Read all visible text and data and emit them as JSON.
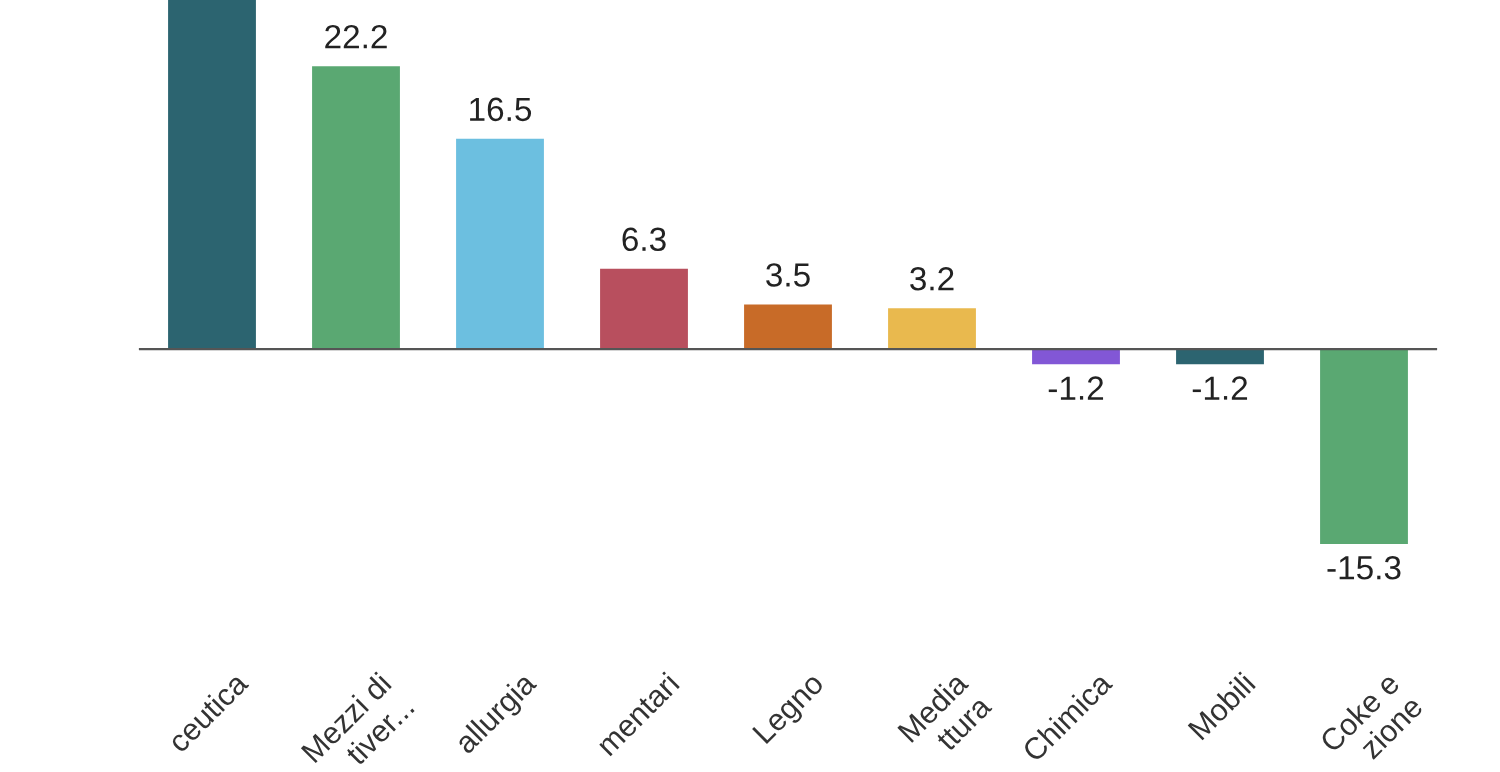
{
  "chart_data": {
    "type": "bar",
    "categories": [
      "ceutica",
      "Mezzi di\ntiver...",
      "allurgia",
      "mentari",
      "Legno",
      "Media\nttura",
      "Chimica",
      "Mobili",
      "Coke e\nzione"
    ],
    "values": [
      27.4,
      22.2,
      16.5,
      6.3,
      3.5,
      3.2,
      -1.2,
      -1.2,
      -15.3
    ],
    "colors": [
      "#2c6470",
      "#5aa872",
      "#6cbfe0",
      "#b84f5e",
      "#c86b28",
      "#e9b94e",
      "#8257d6",
      "#2c6470",
      "#5aa872"
    ],
    "value_labels": [
      null,
      "22.2",
      "16.5",
      "6.3",
      "3.5",
      "3.2",
      "-1.2",
      "-1.2",
      "-15.3"
    ],
    "tick_labels": "x"
  }
}
